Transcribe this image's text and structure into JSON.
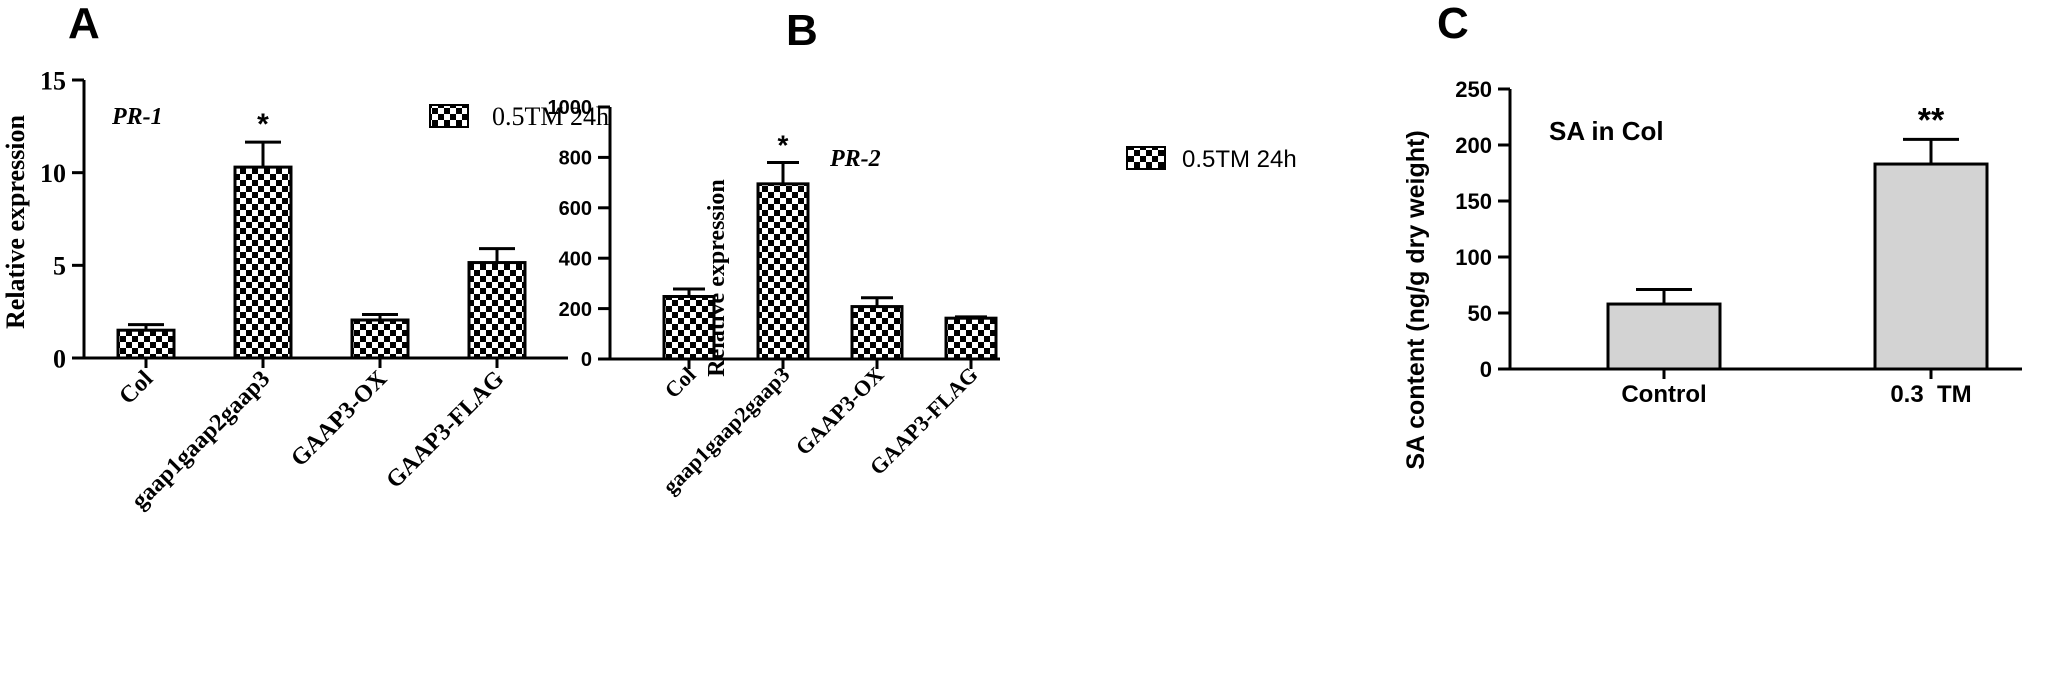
{
  "chart_data": [
    {
      "panel_label": "A",
      "type": "bar",
      "title": "PR-1",
      "ylabel": "Relative expression",
      "xlabel": "",
      "categories": [
        "Col",
        "gaap1gaap2gaap3",
        "GAAP3-OX",
        "GAAP3-FLAG"
      ],
      "series": [
        {
          "name": "0.5TM 24h",
          "values": [
            1.5,
            10.3,
            2.05,
            5.15
          ],
          "errors": [
            0.3,
            1.35,
            0.3,
            0.75
          ]
        }
      ],
      "ylim": [
        0,
        15
      ],
      "yticks": [
        0,
        5,
        10,
        15
      ],
      "annotations": [
        {
          "category": "gaap1gaap2gaap3",
          "text": "*"
        }
      ],
      "legend_position": "top-right",
      "pattern": "checkerboard",
      "grid": false
    },
    {
      "panel_label": "B",
      "type": "bar",
      "title": "PR-2",
      "ylabel": "Relative expression",
      "xlabel": "",
      "categories": [
        "Col",
        "gaap1gaap2gaap3",
        "GAAP3-OX",
        "GAAP3-FLAG"
      ],
      "series": [
        {
          "name": "0.5TM 24h",
          "values": [
            248,
            695,
            208,
            162
          ],
          "errors": [
            30,
            85,
            35,
            5
          ]
        }
      ],
      "ylim": [
        0,
        1000
      ],
      "yticks": [
        0,
        200,
        400,
        600,
        800,
        1000
      ],
      "annotations": [
        {
          "category": "gaap1gaap2gaap3",
          "text": "*"
        }
      ],
      "legend_position": "top-right",
      "pattern": "checkerboard",
      "grid": false
    },
    {
      "panel_label": "C",
      "type": "bar",
      "title": "SA in Col",
      "ylabel": "SA content (ng/g dry weight)",
      "xlabel": "",
      "categories": [
        "Control",
        "0.3  TM"
      ],
      "series": [
        {
          "name": "",
          "values": [
            58,
            183
          ],
          "errors": [
            13,
            22
          ]
        }
      ],
      "ylim": [
        0,
        250
      ],
      "yticks": [
        0,
        50,
        100,
        150,
        200,
        250
      ],
      "annotations": [
        {
          "category": "0.3  TM",
          "text": "**"
        }
      ],
      "fill_color": "#d3d3d3",
      "grid": false
    }
  ]
}
